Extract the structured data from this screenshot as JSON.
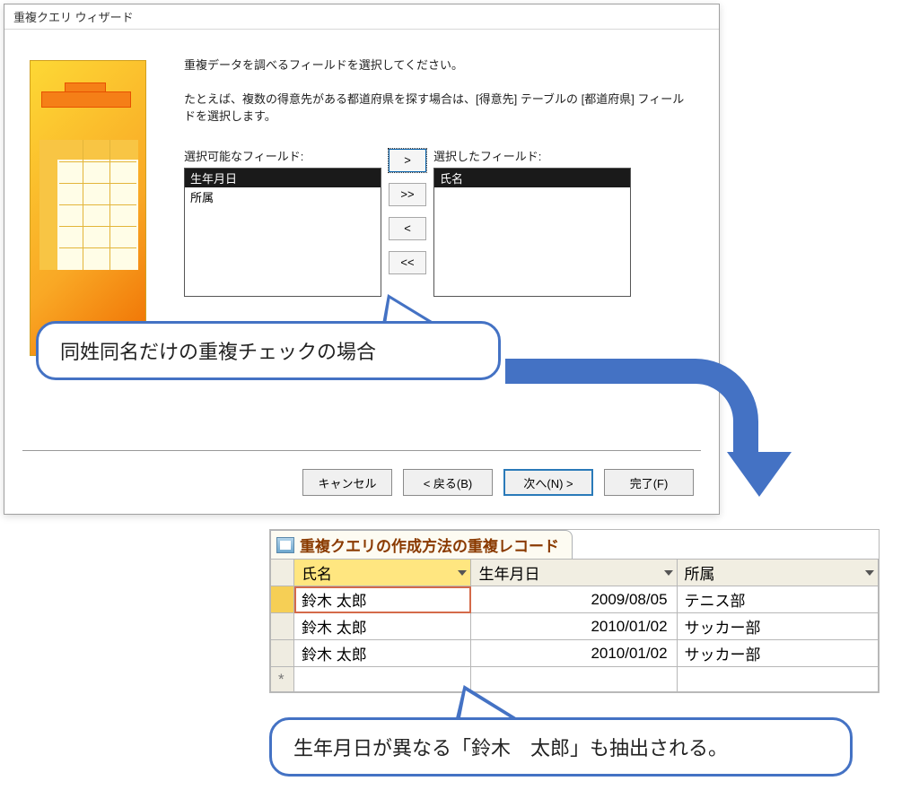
{
  "dialog": {
    "title": "重複クエリ ウィザード",
    "instruction": "重複データを調べるフィールドを選択してください。",
    "example": "たとえば、複数の得意先がある都道府県を探す場合は、[得意先] テーブルの [都道府県] フィールドを選択します。",
    "available_label": "選択可能なフィールド:",
    "selected_label": "選択したフィールド:",
    "available_fields": [
      {
        "label": "生年月日",
        "selected": true
      },
      {
        "label": "所属",
        "selected": false
      }
    ],
    "selected_fields": [
      {
        "label": "氏名",
        "selected": true
      }
    ],
    "move_buttons": {
      "add_one": ">",
      "add_all": ">>",
      "remove_one": "<",
      "remove_all": "<<"
    },
    "buttons": {
      "cancel": "キャンセル",
      "back": "< 戻る(B)",
      "next": "次へ(N) >",
      "finish": "完了(F)"
    },
    "graphic_colors": {
      "gradient_top": "#fdd835",
      "gradient_mid": "#f9a825",
      "gradient_bottom": "#ef6c00"
    }
  },
  "callouts": {
    "first": "同姓同名だけの重複チェックの場合",
    "second": "生年月日が異なる「鈴木　太郎」も抽出される。",
    "border_color": "#4472c4",
    "arrow_color": "#4472c4"
  },
  "results": {
    "tab_title": "重複クエリの作成方法の重複レコード",
    "columns": [
      "氏名",
      "生年月日",
      "所属"
    ],
    "selected_column_index": 0,
    "header_bg": "#f1eee2",
    "selected_header_bg": "#ffe680",
    "cell_border": "#b7b7b7",
    "selected_cell_outline": "#d46a4a",
    "rows": [
      {
        "name": "鈴木 太郎",
        "dob": "2009/08/05",
        "club": "テニス部",
        "row_selected": true,
        "cell_selected": true
      },
      {
        "name": "鈴木 太郎",
        "dob": "2010/01/02",
        "club": "サッカー部",
        "row_selected": false,
        "cell_selected": false
      },
      {
        "name": "鈴木 太郎",
        "dob": "2010/01/02",
        "club": "サッカー部",
        "row_selected": false,
        "cell_selected": false
      }
    ],
    "newrow_marker": "*"
  }
}
